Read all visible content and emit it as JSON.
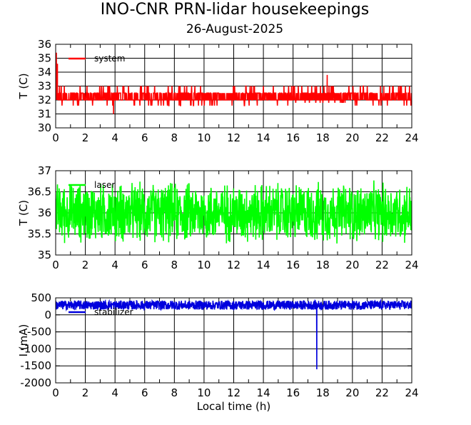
{
  "title": "INO-CNR PRN-lidar housekeepings",
  "subtitle": "26-August-2025",
  "chart_data": [
    {
      "type": "line",
      "ylabel": "T (C)",
      "xlabel": "",
      "xlim": [
        0,
        24
      ],
      "ylim": [
        30,
        36
      ],
      "x_ticks": [
        "0",
        "2",
        "4",
        "6",
        "8",
        "10",
        "12",
        "14",
        "16",
        "18",
        "20",
        "22",
        "24"
      ],
      "y_ticks": [
        "30",
        "31",
        "32",
        "33",
        "34",
        "35",
        "36"
      ],
      "grid": true,
      "legend_position": "top-left",
      "series": [
        {
          "name": "system",
          "color": "#ff0000",
          "signal": {
            "kind": "quantized",
            "levels": [
              31.5,
              32,
              32.5,
              33
            ],
            "segments": [
              {
                "x": [
                  0,
                  14
                ],
                "range": [
                  31.6,
                  33.0
                ]
              },
              {
                "x": [
                  14,
                  16
                ],
                "range": [
                  31.6,
                  33.4
                ]
              },
              {
                "x": [
                  16,
                  20
                ],
                "range": [
                  31.8,
                  33.8
                ]
              },
              {
                "x": [
                  20,
                  24
                ],
                "range": [
                  31.6,
                  33.2
                ]
              }
            ],
            "spikes": [
              {
                "x": 0.05,
                "y": 35.4
              },
              {
                "x": 0.12,
                "y": 34.6
              },
              {
                "x": 3.9,
                "y": 31.0
              },
              {
                "x": 18.3,
                "y": 33.8
              }
            ]
          }
        }
      ]
    },
    {
      "type": "line",
      "ylabel": "T (C)",
      "xlabel": "",
      "xlim": [
        0,
        24
      ],
      "ylim": [
        35,
        37
      ],
      "x_ticks": [
        "0",
        "2",
        "4",
        "6",
        "8",
        "10",
        "12",
        "14",
        "16",
        "18",
        "20",
        "22",
        "24"
      ],
      "y_ticks": [
        "35",
        "35.5",
        "36",
        "36.5",
        "37"
      ],
      "grid": true,
      "legend_position": "top-left",
      "series": [
        {
          "name": "laser",
          "color": "#00ff00",
          "signal": {
            "kind": "noise",
            "center": 36.0,
            "amplitude": 0.8,
            "min": 35.12,
            "max": 36.82
          }
        }
      ]
    },
    {
      "type": "line",
      "ylabel": "I (mA)",
      "xlabel": "Local time (h)",
      "xlim": [
        0,
        24
      ],
      "ylim": [
        -2000,
        500
      ],
      "x_ticks": [
        "0",
        "2",
        "4",
        "6",
        "8",
        "10",
        "12",
        "14",
        "16",
        "18",
        "20",
        "22",
        "24"
      ],
      "y_ticks": [
        "-2000",
        "-1500",
        "-1000",
        "-500",
        "0",
        "500"
      ],
      "grid": true,
      "legend_position": "top-left",
      "series": [
        {
          "name": "stabilizer",
          "color": "#0000dd",
          "signal": {
            "kind": "band",
            "range": [
              150,
              420
            ],
            "spikes": [
              {
                "x": 17.6,
                "y": -1600
              }
            ]
          }
        }
      ]
    }
  ]
}
